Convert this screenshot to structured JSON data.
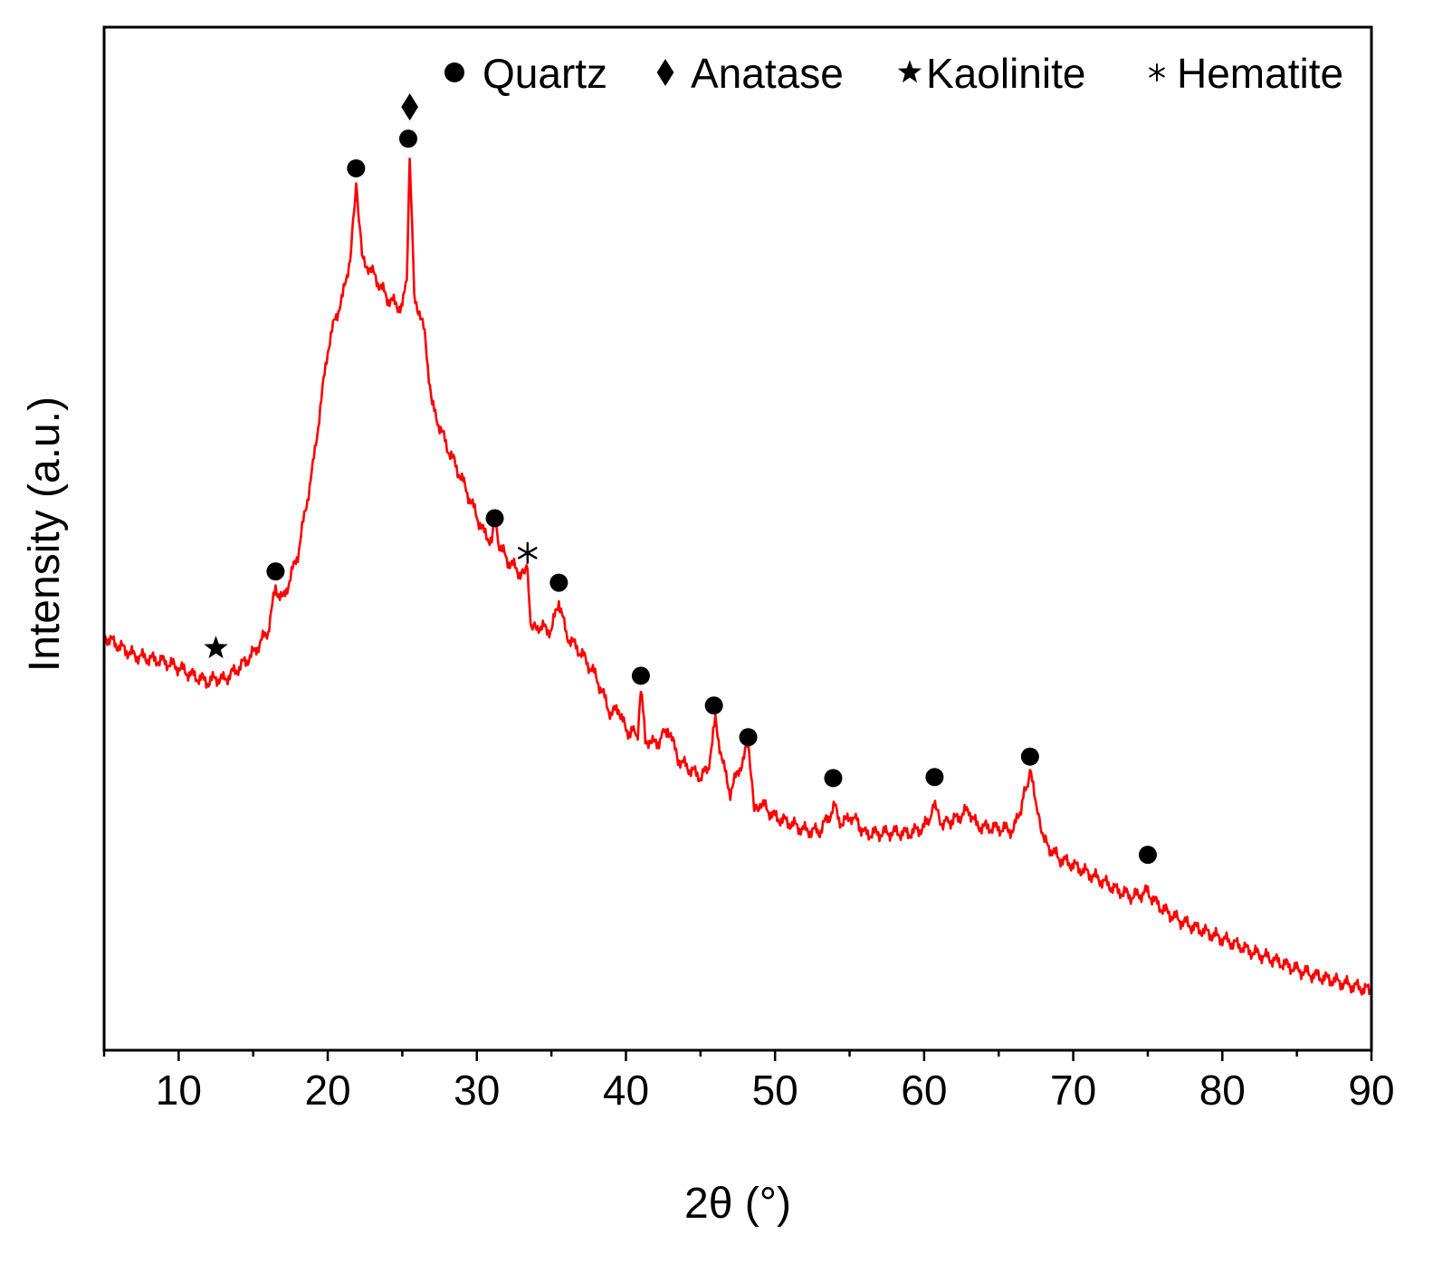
{
  "chart_data": {
    "type": "line",
    "title": "",
    "xlabel": "2θ (°)",
    "ylabel": "Intensity (a.u.)",
    "xlim": [
      5,
      90
    ],
    "ylim": [
      0,
      100
    ],
    "y_ticks_shown": false,
    "grid": false,
    "legend_placement": "top-right",
    "line_color": "#ff0000",
    "x_ticks": [
      10,
      20,
      30,
      40,
      50,
      60,
      70,
      80,
      90
    ],
    "x_tick_labels": [
      "10",
      "20",
      "30",
      "40",
      "50",
      "60",
      "70",
      "80",
      "90"
    ],
    "series": [
      {
        "name": "",
        "color": "#ff0000",
        "points": [
          [
            5,
            40.5
          ],
          [
            6,
            39.5
          ],
          [
            7,
            38.6
          ],
          [
            8,
            38.3
          ],
          [
            9,
            38.0
          ],
          [
            10,
            37.4
          ],
          [
            11,
            36.6
          ],
          [
            12,
            36.0
          ],
          [
            12.5,
            36.4
          ],
          [
            13,
            36.2
          ],
          [
            14,
            37.3
          ],
          [
            15,
            38.8
          ],
          [
            16,
            41.0
          ],
          [
            16.5,
            45.2
          ],
          [
            17,
            44.0
          ],
          [
            18,
            48.5
          ],
          [
            19,
            57.0
          ],
          [
            20,
            68.5
          ],
          [
            20.5,
            71.5
          ],
          [
            21,
            73.6
          ],
          [
            21.5,
            77.5
          ],
          [
            21.9,
            84.2
          ],
          [
            22.3,
            77.5
          ],
          [
            23,
            76.0
          ],
          [
            24,
            73.5
          ],
          [
            25,
            72.5
          ],
          [
            25.3,
            76.0
          ],
          [
            25.5,
            87.2
          ],
          [
            25.8,
            74.0
          ],
          [
            26.5,
            70.0
          ],
          [
            27,
            63.0
          ],
          [
            28,
            59.0
          ],
          [
            29,
            55.8
          ],
          [
            30,
            52.2
          ],
          [
            30.5,
            50.5
          ],
          [
            31,
            49.8
          ],
          [
            31.2,
            52.0
          ],
          [
            31.5,
            49.4
          ],
          [
            32,
            48.0
          ],
          [
            33,
            46.5
          ],
          [
            33.4,
            46.7
          ],
          [
            33.6,
            41.0
          ],
          [
            34,
            41.5
          ],
          [
            35,
            41.0
          ],
          [
            35.5,
            44.0
          ],
          [
            36,
            40.6
          ],
          [
            37,
            38.8
          ],
          [
            38,
            36.5
          ],
          [
            39,
            32.8
          ],
          [
            39.5,
            33.5
          ],
          [
            40,
            31.2
          ],
          [
            40.8,
            31.0
          ],
          [
            41.0,
            35.5
          ],
          [
            41.3,
            30.5
          ],
          [
            42,
            29.8
          ],
          [
            42.8,
            31.5
          ],
          [
            43.5,
            28.5
          ],
          [
            44,
            27.8
          ],
          [
            45,
            26.7
          ],
          [
            45.5,
            27.5
          ],
          [
            46.0,
            32.2
          ],
          [
            46.5,
            28.0
          ],
          [
            47,
            25.2
          ],
          [
            48.2,
            29.8
          ],
          [
            48.6,
            24.0
          ],
          [
            49,
            24.2
          ],
          [
            50,
            22.8
          ],
          [
            51,
            22.2
          ],
          [
            52,
            21.5
          ],
          [
            53,
            21.4
          ],
          [
            54.0,
            23.8
          ],
          [
            54.5,
            22.0
          ],
          [
            55.2,
            23.0
          ],
          [
            56,
            21.2
          ],
          [
            57,
            21.2
          ],
          [
            58,
            21.3
          ],
          [
            59,
            21.2
          ],
          [
            60,
            21.8
          ],
          [
            60.8,
            24.0
          ],
          [
            61.2,
            22.2
          ],
          [
            62,
            22.5
          ],
          [
            63,
            23.5
          ],
          [
            63.5,
            22.0
          ],
          [
            64,
            21.8
          ],
          [
            65,
            21.7
          ],
          [
            66,
            21.5
          ],
          [
            66.5,
            23.8
          ],
          [
            67.1,
            27.1
          ],
          [
            67.6,
            23.8
          ],
          [
            68,
            20.5
          ],
          [
            69,
            18.8
          ],
          [
            70,
            18.1
          ],
          [
            71,
            17.3
          ],
          [
            72,
            16.5
          ],
          [
            73,
            15.6
          ],
          [
            74,
            15.0
          ],
          [
            75,
            15.5
          ],
          [
            75.5,
            14.5
          ],
          [
            76,
            13.8
          ],
          [
            77,
            12.8
          ],
          [
            78,
            12.1
          ],
          [
            79,
            11.5
          ],
          [
            80,
            10.9
          ],
          [
            81,
            10.3
          ],
          [
            82,
            9.6
          ],
          [
            83,
            9.1
          ],
          [
            84,
            8.5
          ],
          [
            85,
            7.9
          ],
          [
            86,
            7.4
          ],
          [
            87,
            7.0
          ],
          [
            88,
            6.6
          ],
          [
            89,
            6.2
          ],
          [
            90,
            5.8
          ]
        ]
      }
    ],
    "phase_markers": [
      {
        "phase": "Kaolinite",
        "symbol": "star",
        "x": 12.5,
        "y": 39.3
      },
      {
        "phase": "Quartz",
        "symbol": "circle",
        "x": 16.5,
        "y": 46.8
      },
      {
        "phase": "Quartz",
        "symbol": "circle",
        "x": 21.9,
        "y": 86.2
      },
      {
        "phase": "Quartz",
        "symbol": "circle",
        "x": 25.4,
        "y": 89.1
      },
      {
        "phase": "Anatase",
        "symbol": "diamond",
        "x": 25.5,
        "y": 92.2
      },
      {
        "phase": "Quartz",
        "symbol": "circle",
        "x": 31.2,
        "y": 52.0
      },
      {
        "phase": "Hematite",
        "symbol": "asterisk",
        "x": 33.4,
        "y": 48.6
      },
      {
        "phase": "Quartz",
        "symbol": "circle",
        "x": 35.5,
        "y": 45.7
      },
      {
        "phase": "Quartz",
        "symbol": "circle",
        "x": 41.0,
        "y": 36.6
      },
      {
        "phase": "Quartz",
        "symbol": "circle",
        "x": 45.9,
        "y": 33.7
      },
      {
        "phase": "Quartz",
        "symbol": "circle",
        "x": 48.2,
        "y": 30.6
      },
      {
        "phase": "Quartz",
        "symbol": "circle",
        "x": 53.9,
        "y": 26.6
      },
      {
        "phase": "Quartz",
        "symbol": "circle",
        "x": 60.7,
        "y": 26.7
      },
      {
        "phase": "Quartz",
        "symbol": "circle",
        "x": 67.1,
        "y": 28.7
      },
      {
        "phase": "Quartz",
        "symbol": "circle",
        "x": 75.0,
        "y": 19.1
      }
    ],
    "legend": [
      {
        "symbol": "circle",
        "label": "Quartz"
      },
      {
        "symbol": "diamond",
        "label": "Anatase"
      },
      {
        "symbol": "star",
        "label": "Kaolinite"
      },
      {
        "symbol": "asterisk",
        "label": "Hematite"
      }
    ]
  }
}
